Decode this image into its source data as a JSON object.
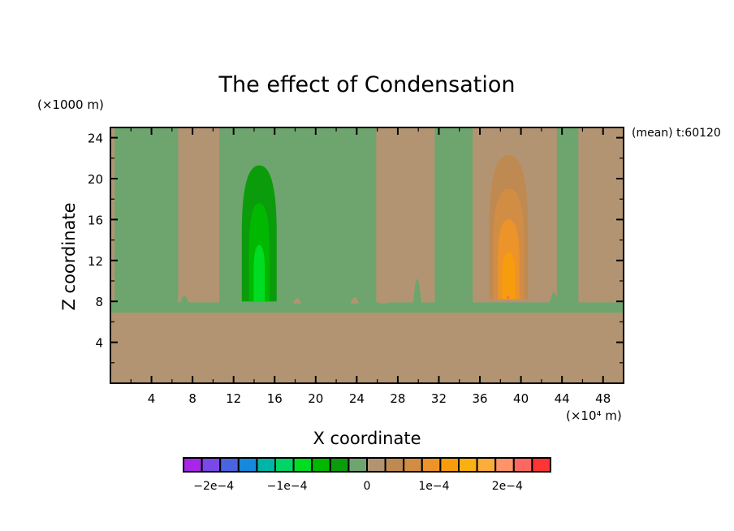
{
  "chart_data": {
    "type": "heatmap",
    "title": "The effect of Condensation",
    "xlabel": "X coordinate",
    "ylabel": "Z coordinate",
    "x_unit_label": "(×10⁴ m)",
    "y_unit_label": "(×1000 m)",
    "annotation": "(mean) t:60120",
    "xlim": [
      0,
      50
    ],
    "ylim": [
      0,
      25
    ],
    "x_ticks": [
      4,
      8,
      12,
      16,
      20,
      24,
      28,
      32,
      36,
      40,
      44,
      48
    ],
    "x_tick_labels": [
      "4",
      "8",
      "12",
      "16",
      "20",
      "24",
      "28",
      "32",
      "36",
      "40",
      "44",
      "48"
    ],
    "y_ticks": [
      4,
      8,
      12,
      16,
      20,
      24
    ],
    "y_tick_labels": [
      "4",
      "8",
      "12",
      "16",
      "20",
      "24"
    ],
    "grid": false,
    "colorbar": {
      "levels": [
        -0.00025,
        -0.000225,
        -0.0002,
        -0.000175,
        -0.00015,
        -0.000125,
        -0.0001,
        -7.5e-05,
        -5e-05,
        -2.5e-05,
        0,
        2.5e-05,
        5e-05,
        7.5e-05,
        0.0001,
        0.000125,
        0.00015,
        0.000175,
        0.0002,
        0.000225,
        0.00025
      ],
      "colors": [
        "#a726e8",
        "#7b47e8",
        "#4a64e0",
        "#1689dc",
        "#00b4a6",
        "#00d466",
        "#00dc22",
        "#00b800",
        "#0b9c0b",
        "#6ea56e",
        "#b39472",
        "#bf8a52",
        "#d28d45",
        "#ec932a",
        "#f79c0d",
        "#f9b012",
        "#fbac3b",
        "#fd9467",
        "#fd6762",
        "#fd3535"
      ],
      "tick_values": [
        -0.0002,
        -0.0001,
        0,
        0.0001,
        0.0002
      ],
      "tick_labels": [
        "−2e−4",
        "−1e−4",
        "0",
        "1e−4",
        "2e−4"
      ],
      "placement": "bottom"
    },
    "regions": {
      "background_negative_small": {
        "color_index": 9,
        "range": [
          -2.5e-05,
          0
        ]
      },
      "background_positive_small": {
        "color_index": 10,
        "range": [
          0,
          2.5e-05
        ]
      },
      "lower_layer": {
        "z_range": [
          0,
          6.9
        ],
        "color_index": 10
      },
      "positive_columns_x": [
        [
          0,
          0.4
        ],
        [
          6.6,
          10.6
        ],
        [
          25.9,
          31.6
        ],
        [
          35.3,
          43.5
        ],
        [
          45.6,
          50
        ]
      ],
      "negative_plume": {
        "x_center": 14.5,
        "z_base": 8,
        "z_top_levels": [
          21.3,
          17.6,
          13.5
        ],
        "color_indices": [
          8,
          7,
          6
        ]
      },
      "positive_plume": {
        "x_center": 38.8,
        "z_base": 8.2,
        "z_top_levels": [
          22.3,
          19.0,
          16.0,
          12.8
        ],
        "color_indices": [
          11,
          12,
          13,
          14
        ]
      }
    }
  }
}
